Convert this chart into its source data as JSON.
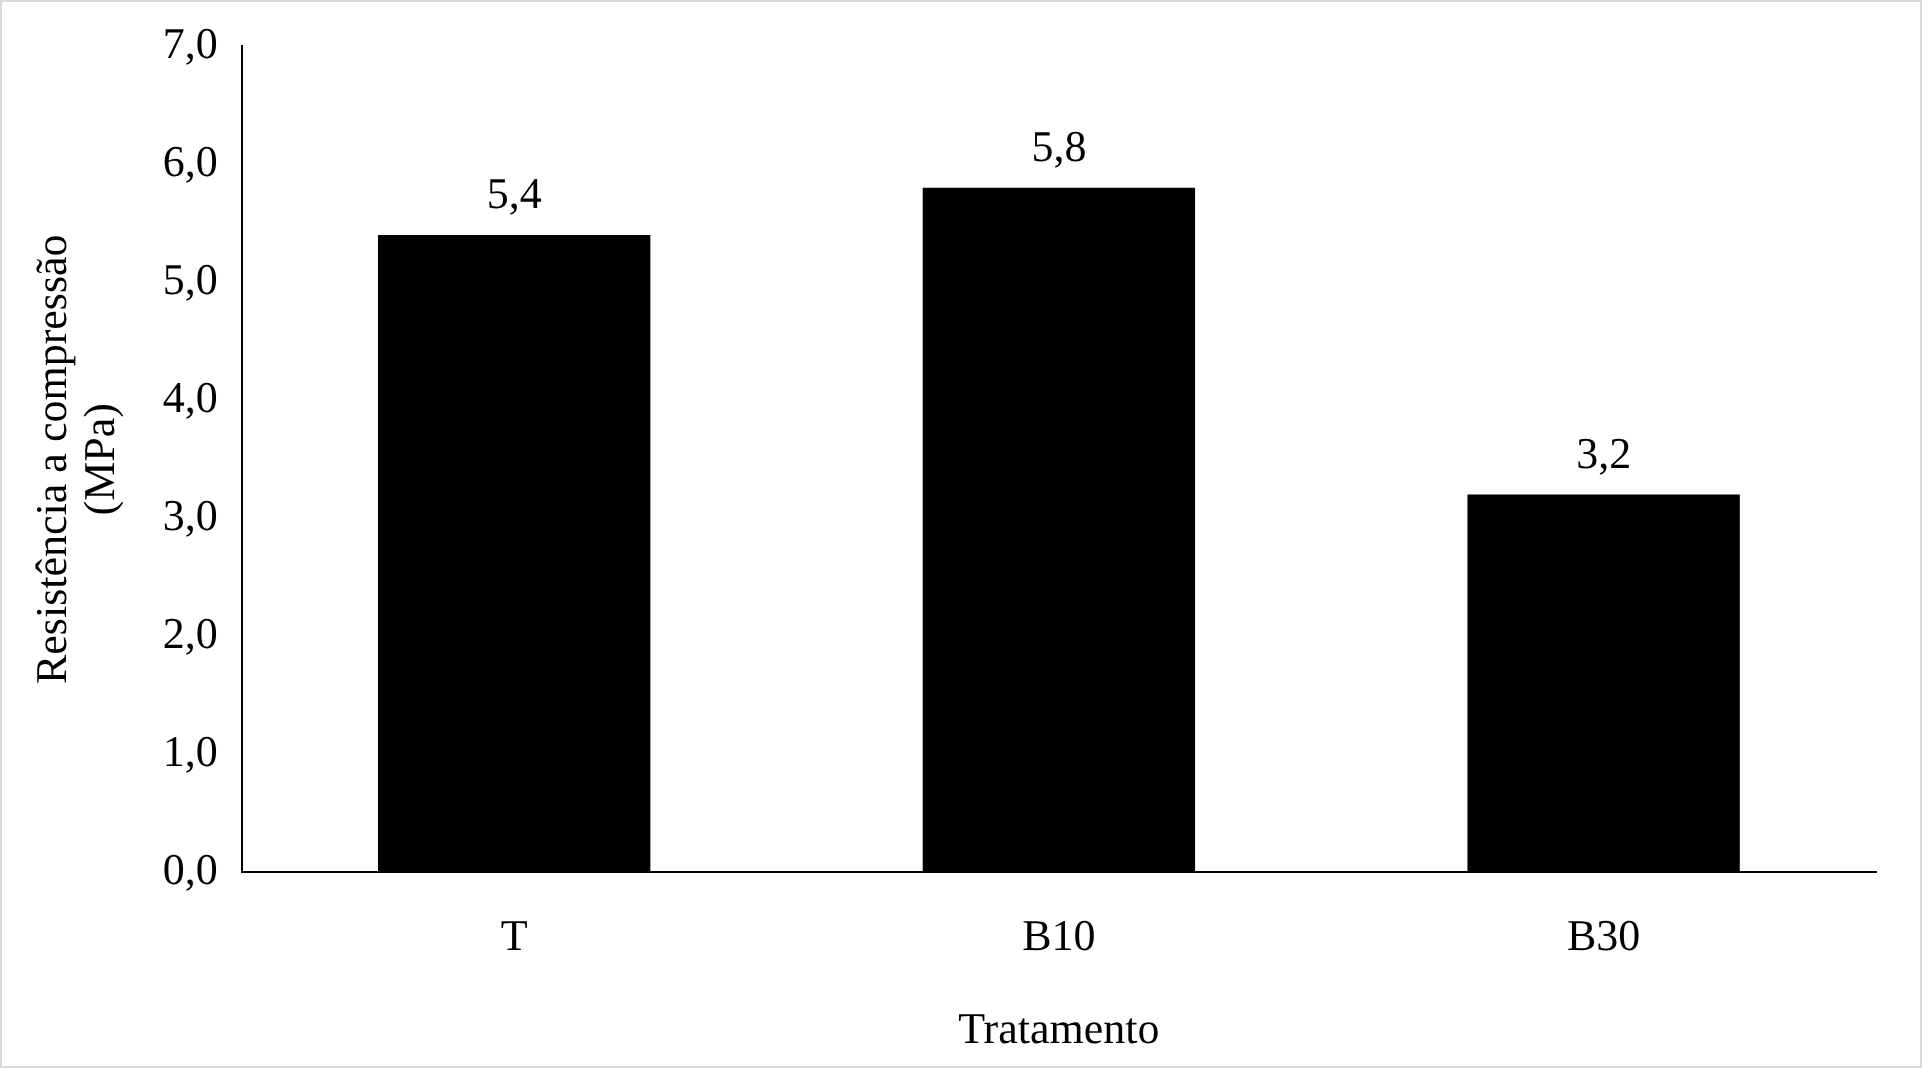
{
  "chart_data": {
    "type": "bar",
    "xlabel": "Tratamento",
    "ylabel": "Resistência a compressão (MPa)",
    "categories": [
      "T",
      "B10",
      "B30"
    ],
    "values": [
      5.4,
      5.8,
      3.2
    ],
    "value_labels": [
      "5,4",
      "5,8",
      "3,2"
    ],
    "color": "#000000",
    "ylim": [
      0,
      7
    ],
    "yticks": [
      {
        "value": 0,
        "label": "0,0"
      },
      {
        "value": 1,
        "label": "1,0"
      },
      {
        "value": 2,
        "label": "2,0"
      },
      {
        "value": 3,
        "label": "3,0"
      },
      {
        "value": 4,
        "label": "4,0"
      },
      {
        "value": 5,
        "label": "5,0"
      },
      {
        "value": 6,
        "label": "6,0"
      },
      {
        "value": 7,
        "label": "7,0"
      }
    ],
    "grid": false,
    "legend": false
  }
}
